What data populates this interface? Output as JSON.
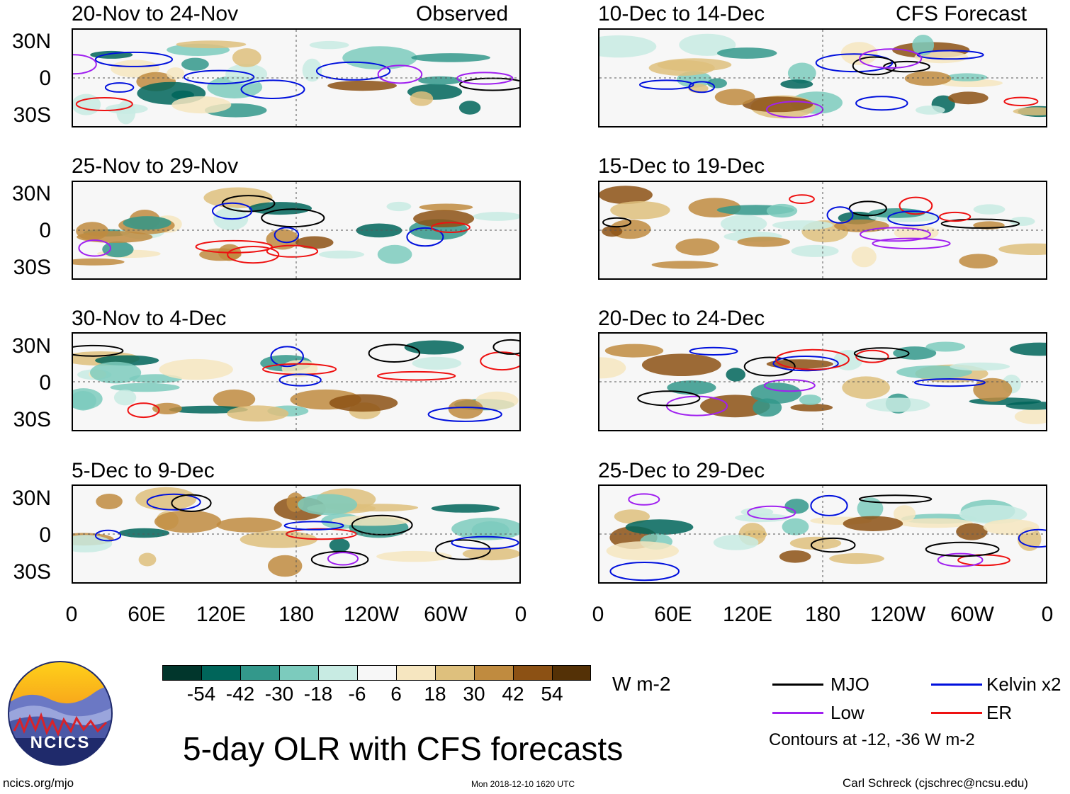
{
  "panels": [
    {
      "period": "20-Nov to 24-Nov",
      "source": "Observed"
    },
    {
      "period": "25-Nov to 29-Nov",
      "source": ""
    },
    {
      "period": "30-Nov to 4-Dec",
      "source": ""
    },
    {
      "period": "5-Dec to 9-Dec",
      "source": ""
    },
    {
      "period": "10-Dec to 14-Dec",
      "source": "CFS Forecast"
    },
    {
      "period": "15-Dec to 19-Dec",
      "source": ""
    },
    {
      "period": "20-Dec to 24-Dec",
      "source": ""
    },
    {
      "period": "25-Dec to 29-Dec",
      "source": ""
    }
  ],
  "lat_labels": [
    "30N",
    "0",
    "30S"
  ],
  "lon_labels": [
    "0",
    "60E",
    "120E",
    "180",
    "120W",
    "60W",
    "0"
  ],
  "colorbar": {
    "unit": "W m-2",
    "labels": [
      "-54",
      "-42",
      "-30",
      "-18",
      "-6",
      "6",
      "18",
      "30",
      "42",
      "54"
    ],
    "colors": [
      "#01362c",
      "#00655a",
      "#33988b",
      "#7ccbbd",
      "#c8ebe3",
      "#f7f7f7",
      "#f6e6c0",
      "#dec07d",
      "#c08b3f",
      "#8c5114",
      "#543106"
    ]
  },
  "legend": {
    "items": [
      {
        "name": "MJO",
        "color": "#000000"
      },
      {
        "name": "Kelvin x2",
        "color": "#0010dd"
      },
      {
        "name": "Low",
        "color": "#a020f0"
      },
      {
        "name": "ER",
        "color": "#ee1111"
      }
    ],
    "note": "Contours at -12, -36 W m-2"
  },
  "main_title": "5-day OLR with CFS forecasts",
  "logo_text": "NCICS",
  "footer": {
    "url": "ncics.org/mjo",
    "timestamp": "Mon 2018-12-10 1620 UTC",
    "credit": "Carl Schreck (cjschrec@ncsu.edu)"
  }
}
